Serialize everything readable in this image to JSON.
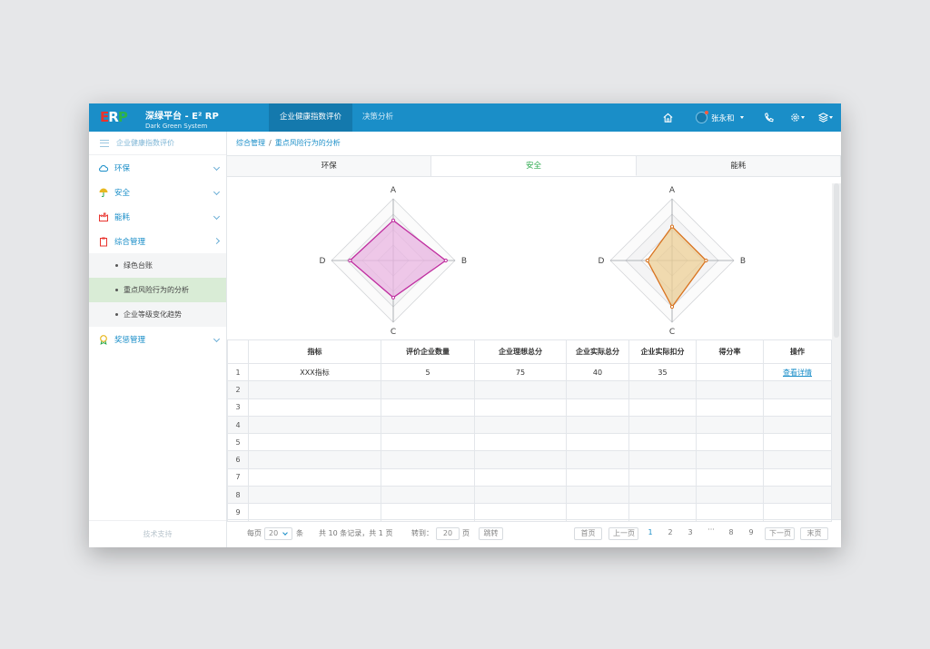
{
  "header": {
    "brand_title": "深绿平台 - E² RP",
    "brand_subtitle": "Dark Green System",
    "tabs": [
      "企业健康指数评价",
      "决策分析"
    ],
    "user_name": "张永和",
    "icons": [
      "home-icon",
      "user-icon",
      "phone-icon",
      "gear-icon",
      "layers-icon"
    ],
    "color": "#1a8ec8"
  },
  "sidebar": {
    "title": "企业健康指数评价",
    "items": [
      {
        "label": "环保",
        "icon": "cloud-icon"
      },
      {
        "label": "安全",
        "icon": "umbrella-icon"
      },
      {
        "label": "能耗",
        "icon": "factory-icon"
      },
      {
        "label": "综合管理",
        "icon": "clipboard-icon"
      }
    ],
    "sub_items": [
      "绿色台账",
      "重点风险行为的分析",
      "企业等级变化趋势"
    ],
    "last_item": {
      "label": "奖惩管理",
      "icon": "award-icon"
    },
    "footer": "技术支持"
  },
  "breadcrumb": [
    "综合管理",
    "/",
    "重点风险行为的分析"
  ],
  "tabs": [
    "环保",
    "安全",
    "能耗"
  ],
  "chart_data": [
    {
      "type": "radar",
      "axes": [
        "A",
        "B",
        "C",
        "D"
      ],
      "values": [
        0.65,
        0.85,
        0.6,
        0.7
      ],
      "max": 1,
      "rings": 4,
      "color": "#c02da0",
      "fill": "#e9b5e2"
    },
    {
      "type": "radar",
      "axes": [
        "A",
        "B",
        "C",
        "D"
      ],
      "values": [
        0.55,
        0.55,
        0.75,
        0.4
      ],
      "max": 1,
      "rings": 4,
      "color": "#d9731f",
      "fill": "#eccf95"
    }
  ],
  "table": {
    "columns": [
      "",
      "指标",
      "评价企业数量",
      "企业理想总分",
      "企业实际总分",
      "企业实际扣分",
      "得分率",
      "操作"
    ],
    "rows": [
      [
        "1",
        "XXX指标",
        "5",
        "75",
        "40",
        "35",
        "",
        "查看详情"
      ],
      [
        "2",
        "",
        "",
        "",
        "",
        "",
        "",
        ""
      ],
      [
        "3",
        "",
        "",
        "",
        "",
        "",
        "",
        ""
      ],
      [
        "4",
        "",
        "",
        "",
        "",
        "",
        "",
        ""
      ],
      [
        "5",
        "",
        "",
        "",
        "",
        "",
        "",
        ""
      ],
      [
        "6",
        "",
        "",
        "",
        "",
        "",
        "",
        ""
      ],
      [
        "7",
        "",
        "",
        "",
        "",
        "",
        "",
        ""
      ],
      [
        "8",
        "",
        "",
        "",
        "",
        "",
        "",
        ""
      ],
      [
        "9",
        "",
        "",
        "",
        "",
        "",
        "",
        ""
      ]
    ]
  },
  "pager": {
    "per_page_label": "每页",
    "per_page_value": "20",
    "per_page_unit": "条",
    "summary": "共 10 条记录，共 1 页",
    "goto_label": "转到：",
    "goto_value": "20",
    "goto_unit": "页",
    "jump_label": "跳转",
    "first_label": "首页",
    "prev_label": "上一页",
    "pages": [
      "1",
      "2",
      "3",
      "···",
      "8",
      "9"
    ],
    "next_label": "下一页",
    "last_label": "末页"
  }
}
